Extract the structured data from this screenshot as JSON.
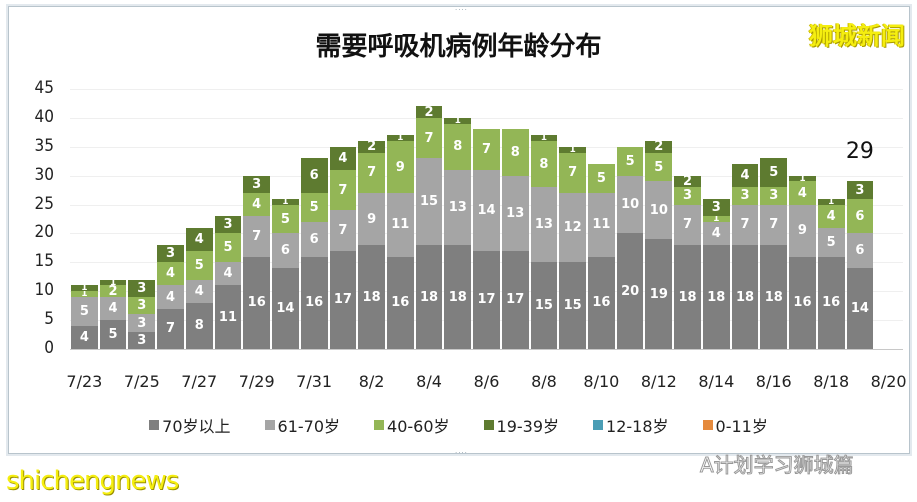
{
  "header": {
    "title": "需要呼吸机病例年龄分布",
    "brand": "狮城新闻"
  },
  "watermarks": {
    "bottom_left": "shichengnews",
    "bottom_right": "A计划学习狮城篇"
  },
  "colors": {
    "70+": "#7f7f7f",
    "61-70": "#a5a5a5",
    "40-60": "#93b656",
    "19-39": "#5e7b30",
    "12-18": "#4a9db5",
    "0-11": "#e58a3c"
  },
  "chart_data": {
    "type": "bar",
    "stacked": true,
    "title": "需要呼吸机病例年龄分布",
    "xlabel": "",
    "ylabel": "",
    "ylim": [
      0,
      45
    ],
    "yticks": [
      0,
      5,
      10,
      15,
      20,
      25,
      30,
      35,
      40,
      45
    ],
    "grid": true,
    "legend_position": "bottom",
    "categories": [
      "7/23",
      "7/24",
      "7/25",
      "7/26",
      "7/27",
      "7/28",
      "7/29",
      "7/30",
      "7/31",
      "8/1",
      "8/2",
      "8/3",
      "8/4",
      "8/5",
      "8/6",
      "8/7",
      "8/8",
      "8/9",
      "8/10",
      "8/11",
      "8/12",
      "8/13",
      "8/14",
      "8/15",
      "8/16",
      "8/17",
      "8/18",
      "8/19",
      "8/20"
    ],
    "xtick_labels": [
      "7/23",
      "7/25",
      "7/27",
      "7/29",
      "7/31",
      "8/2",
      "8/4",
      "8/6",
      "8/8",
      "8/10",
      "8/12",
      "8/14",
      "8/16",
      "8/18",
      "8/20"
    ],
    "series": [
      {
        "name": "70岁以上",
        "values": [
          4,
          5,
          3,
          7,
          8,
          11,
          16,
          14,
          16,
          17,
          18,
          16,
          18,
          18,
          17,
          17,
          15,
          15,
          16,
          20,
          19,
          18,
          18,
          18,
          18,
          16,
          16,
          14,
          0
        ]
      },
      {
        "name": "61-70岁",
        "values": [
          5,
          4,
          3,
          4,
          4,
          4,
          7,
          6,
          6,
          7,
          9,
          11,
          15,
          13,
          14,
          13,
          13,
          12,
          11,
          10,
          10,
          7,
          4,
          7,
          7,
          9,
          5,
          6,
          0
        ]
      },
      {
        "name": "40-60岁",
        "values": [
          1,
          2,
          3,
          4,
          5,
          5,
          4,
          5,
          5,
          7,
          7,
          9,
          7,
          8,
          7,
          8,
          8,
          7,
          5,
          5,
          5,
          3,
          1,
          3,
          3,
          4,
          4,
          6,
          0
        ]
      },
      {
        "name": "19-39岁",
        "values": [
          1,
          1,
          3,
          3,
          4,
          3,
          3,
          1,
          6,
          4,
          2,
          1,
          2,
          1,
          0,
          0,
          1,
          1,
          0,
          0,
          2,
          2,
          3,
          4,
          5,
          1,
          1,
          3,
          0
        ]
      },
      {
        "name": "12-18岁",
        "values": [
          0,
          0,
          0,
          0,
          0,
          0,
          0,
          0,
          0,
          0,
          0,
          0,
          0,
          0,
          0,
          0,
          0,
          0,
          0,
          0,
          0,
          0,
          0,
          0,
          0,
          0,
          0,
          0,
          0
        ]
      },
      {
        "name": "0-11岁",
        "values": [
          0,
          0,
          0,
          0,
          0,
          0,
          0,
          0,
          0,
          0,
          0,
          0,
          0,
          0,
          0,
          0,
          0,
          0,
          0,
          0,
          0,
          0,
          0,
          0,
          0,
          0,
          0,
          0,
          0
        ]
      }
    ],
    "totals": [
      11,
      12,
      12,
      18,
      21,
      23,
      30,
      26,
      33,
      35,
      36,
      37,
      42,
      40,
      38,
      38,
      37,
      35,
      32,
      35,
      36,
      30,
      26,
      32,
      33,
      30,
      26,
      29,
      0
    ],
    "annotations": [
      {
        "category": "8/19",
        "text": "29"
      }
    ]
  }
}
